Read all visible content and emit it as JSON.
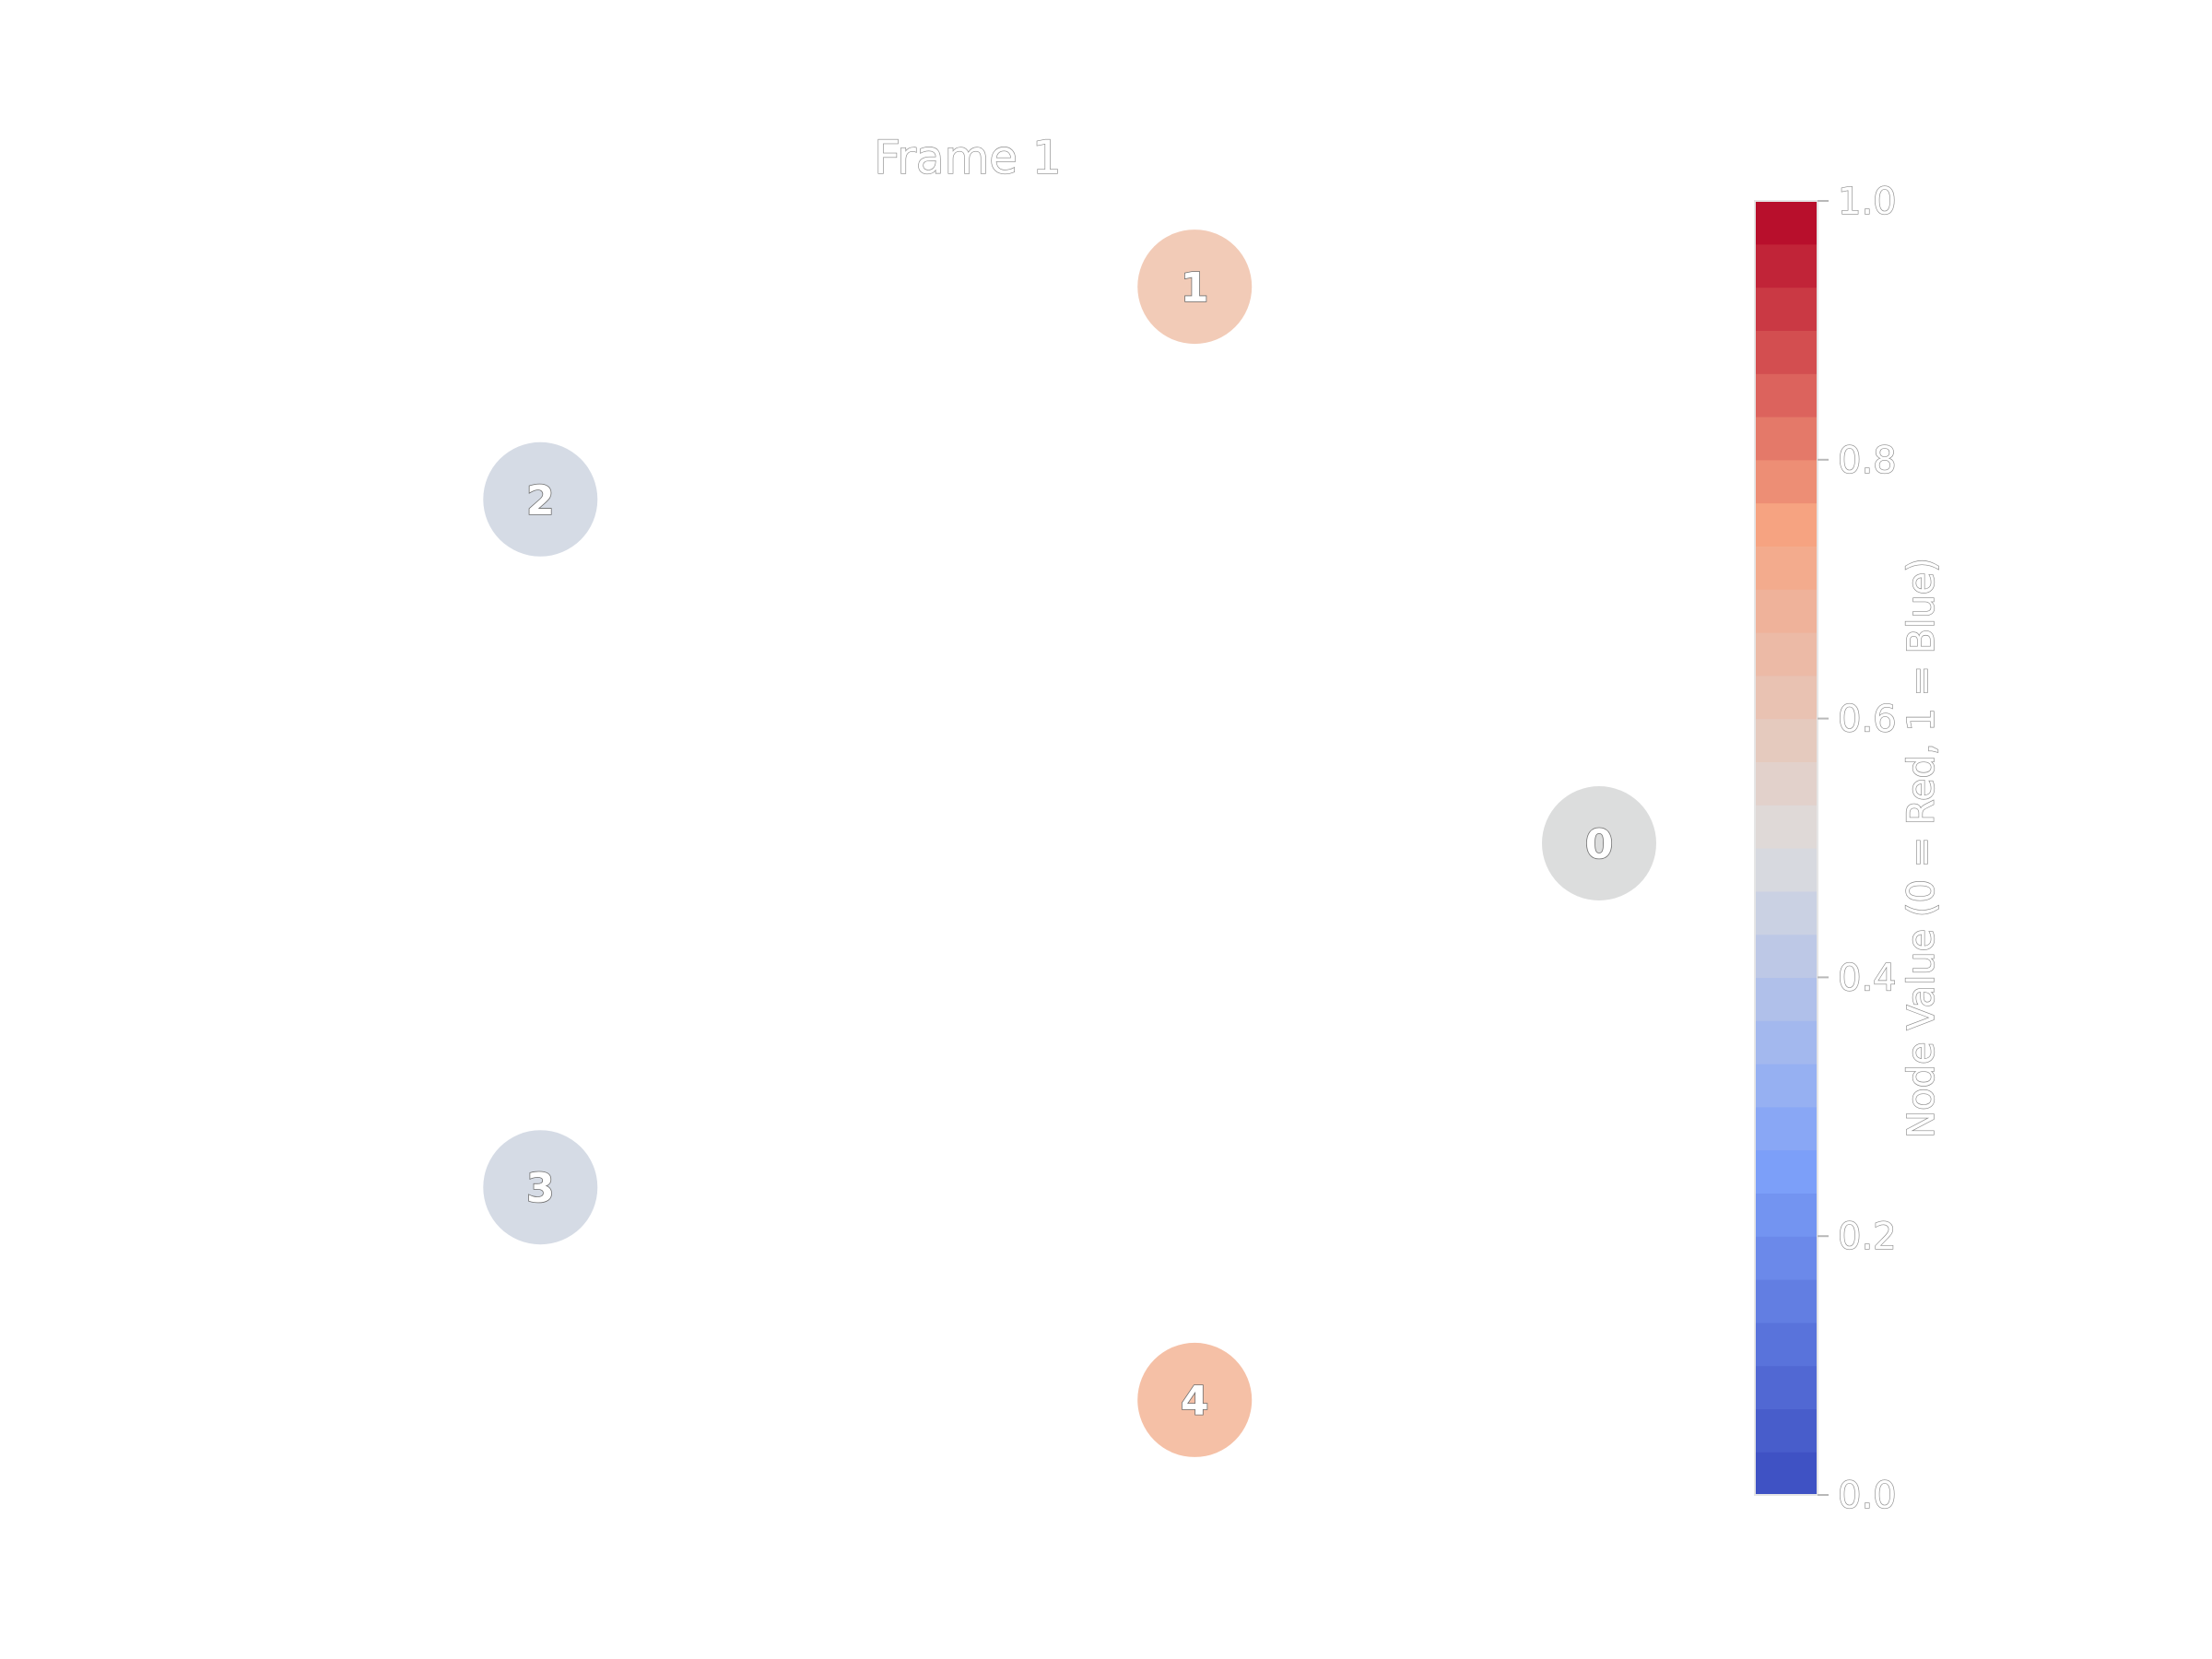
{
  "figure": {
    "title": "Frame 1"
  },
  "chart_data": {
    "type": "network",
    "nodes": [
      {
        "id": "0",
        "label": "0",
        "value": 0.5,
        "color": "#dcdddd"
      },
      {
        "id": "1",
        "label": "1",
        "value": 0.61,
        "color": "#f2cbb7"
      },
      {
        "id": "2",
        "label": "2",
        "value": 0.46,
        "color": "#d5dbe5"
      },
      {
        "id": "3",
        "label": "3",
        "value": 0.46,
        "color": "#d5dbe5"
      },
      {
        "id": "4",
        "label": "4",
        "value": 0.66,
        "color": "#f5c0a6"
      }
    ],
    "edges": [],
    "colorbar": {
      "label": "Node Value (0 = Red, 1 = Blue)",
      "range": [
        0.0,
        1.0
      ],
      "ticks": [
        "0.0",
        "0.2",
        "0.4",
        "0.6",
        "0.8",
        "1.0"
      ],
      "tick_values": [
        0.0,
        0.2,
        0.4,
        0.6,
        0.8,
        1.0
      ],
      "colormap": "coolwarm",
      "steps": 30
    }
  }
}
